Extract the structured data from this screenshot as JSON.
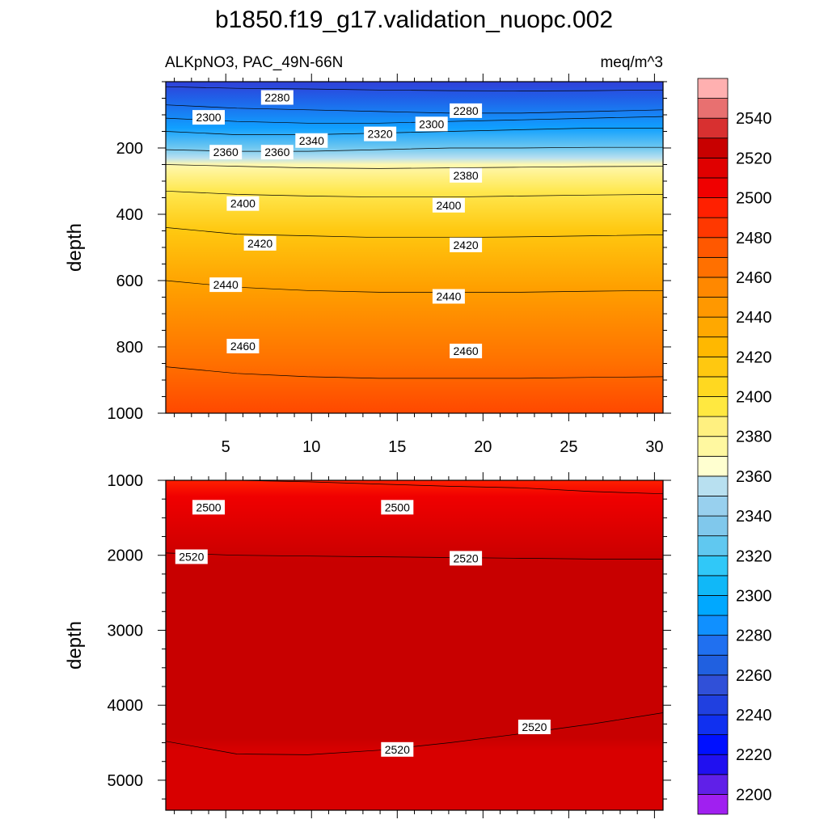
{
  "title": "b1850.f19_g17.validation_nuopc.002",
  "subtitle_left": "ALKpNO3, PAC_49N-66N",
  "subtitle_right": "meq/m^3",
  "chart_data": [
    {
      "type": "heatmap",
      "name": "upper-depth-section",
      "xlim": [
        1.5,
        30.5
      ],
      "ylim": [
        0,
        1000
      ],
      "y_reversed": true,
      "ylabel": "depth",
      "x_ticks": [
        5,
        10,
        15,
        20,
        25,
        30
      ],
      "y_ticks": [
        200,
        400,
        600,
        800,
        1000
      ],
      "isolines": [
        {
          "value": 2280,
          "depths": [
            15,
            20,
            22,
            25,
            27,
            28,
            27,
            25
          ]
        },
        {
          "value": 2300,
          "depths": [
            70,
            80,
            85,
            90,
            95,
            95,
            90,
            85
          ]
        },
        {
          "value": 2320,
          "depths": [
            110,
            120,
            125,
            125,
            120,
            115,
            110,
            105
          ]
        },
        {
          "value": 2340,
          "depths": [
            150,
            160,
            160,
            155,
            150,
            145,
            140,
            140
          ]
        },
        {
          "value": 2360,
          "depths": [
            205,
            210,
            210,
            205,
            200,
            200,
            198,
            198
          ]
        },
        {
          "value": 2380,
          "depths": [
            250,
            255,
            260,
            262,
            260,
            258,
            256,
            255
          ]
        },
        {
          "value": 2400,
          "depths": [
            330,
            340,
            345,
            348,
            348,
            345,
            342,
            340
          ]
        },
        {
          "value": 2420,
          "depths": [
            440,
            460,
            465,
            470,
            470,
            468,
            465,
            462
          ]
        },
        {
          "value": 2440,
          "depths": [
            600,
            620,
            630,
            635,
            635,
            635,
            632,
            630
          ]
        },
        {
          "value": 2460,
          "depths": [
            860,
            880,
            890,
            895,
            895,
            895,
            892,
            890
          ]
        }
      ],
      "labels": [
        {
          "text": "2280",
          "x": 8,
          "depth": 50
        },
        {
          "text": "2280",
          "x": 19,
          "depth": 90
        },
        {
          "text": "2300",
          "x": 4,
          "depth": 110
        },
        {
          "text": "2300",
          "x": 17,
          "depth": 130
        },
        {
          "text": "2320",
          "x": 14,
          "depth": 160
        },
        {
          "text": "2340",
          "x": 10,
          "depth": 180
        },
        {
          "text": "2360",
          "x": 5,
          "depth": 215
        },
        {
          "text": "2360",
          "x": 8,
          "depth": 215
        },
        {
          "text": "2380",
          "x": 19,
          "depth": 285
        },
        {
          "text": "2400",
          "x": 6,
          "depth": 370
        },
        {
          "text": "2400",
          "x": 18,
          "depth": 375
        },
        {
          "text": "2420",
          "x": 7,
          "depth": 490
        },
        {
          "text": "2420",
          "x": 19,
          "depth": 495
        },
        {
          "text": "2440",
          "x": 5,
          "depth": 615
        },
        {
          "text": "2440",
          "x": 18,
          "depth": 650
        },
        {
          "text": "2460",
          "x": 6,
          "depth": 800
        },
        {
          "text": "2460",
          "x": 19,
          "depth": 815
        }
      ]
    },
    {
      "type": "heatmap",
      "name": "lower-depth-section",
      "xlim": [
        1.5,
        30.5
      ],
      "ylim": [
        1000,
        5400
      ],
      "y_reversed": true,
      "ylabel": "depth",
      "y_ticks": [
        1000,
        2000,
        3000,
        4000,
        5000
      ],
      "isolines": [
        {
          "value": 2500,
          "depths": [
            1000,
            1000,
            1020,
            1050,
            1080,
            1100,
            1150,
            1180
          ]
        },
        {
          "value": 2520,
          "depths": [
            1970,
            2000,
            2010,
            2020,
            2030,
            2040,
            2050,
            2050
          ]
        },
        {
          "value": 2520,
          "depths": [
            4480,
            4650,
            4660,
            4600,
            4500,
            4380,
            4250,
            4100
          ]
        }
      ],
      "labels": [
        {
          "text": "2500",
          "x": 4,
          "depth": 1370
        },
        {
          "text": "2500",
          "x": 15,
          "depth": 1370
        },
        {
          "text": "2520",
          "x": 3,
          "depth": 2030
        },
        {
          "text": "2520",
          "x": 19,
          "depth": 2050
        },
        {
          "text": "2520",
          "x": 15,
          "depth": 4600
        },
        {
          "text": "2520",
          "x": 23,
          "depth": 4300
        }
      ]
    }
  ],
  "colorbar": {
    "levels": [
      2200,
      2210,
      2220,
      2230,
      2240,
      2250,
      2260,
      2270,
      2280,
      2290,
      2300,
      2310,
      2320,
      2330,
      2340,
      2350,
      2360,
      2370,
      2380,
      2390,
      2400,
      2410,
      2420,
      2430,
      2440,
      2450,
      2460,
      2470,
      2480,
      2490,
      2500,
      2510,
      2520,
      2530,
      2540,
      2550
    ],
    "colors": [
      "#a020f0",
      "#6020e8",
      "#2010f0",
      "#0010ff",
      "#1030f0",
      "#2040e0",
      "#3050d8",
      "#2060e0",
      "#2070f0",
      "#1090ff",
      "#00a8ff",
      "#10b8f8",
      "#30c8f8",
      "#60c8f0",
      "#80c8ec",
      "#98d0ee",
      "#b8e0f0",
      "#ffffd0",
      "#fff8a0",
      "#fff080",
      "#ffe840",
      "#ffd820",
      "#ffc810",
      "#ffb800",
      "#ffa800",
      "#ff9800",
      "#ff8800",
      "#ff7000",
      "#ff5800",
      "#ff3800",
      "#ff2000",
      "#f00000",
      "#e00000",
      "#c80000",
      "#d83030",
      "#e87070",
      "#ffb0b0"
    ],
    "tick_labels": [
      "2200",
      "2220",
      "2240",
      "2260",
      "2280",
      "2300",
      "2320",
      "2340",
      "2360",
      "2380",
      "2400",
      "2420",
      "2440",
      "2460",
      "2480",
      "2500",
      "2520",
      "2540"
    ]
  }
}
